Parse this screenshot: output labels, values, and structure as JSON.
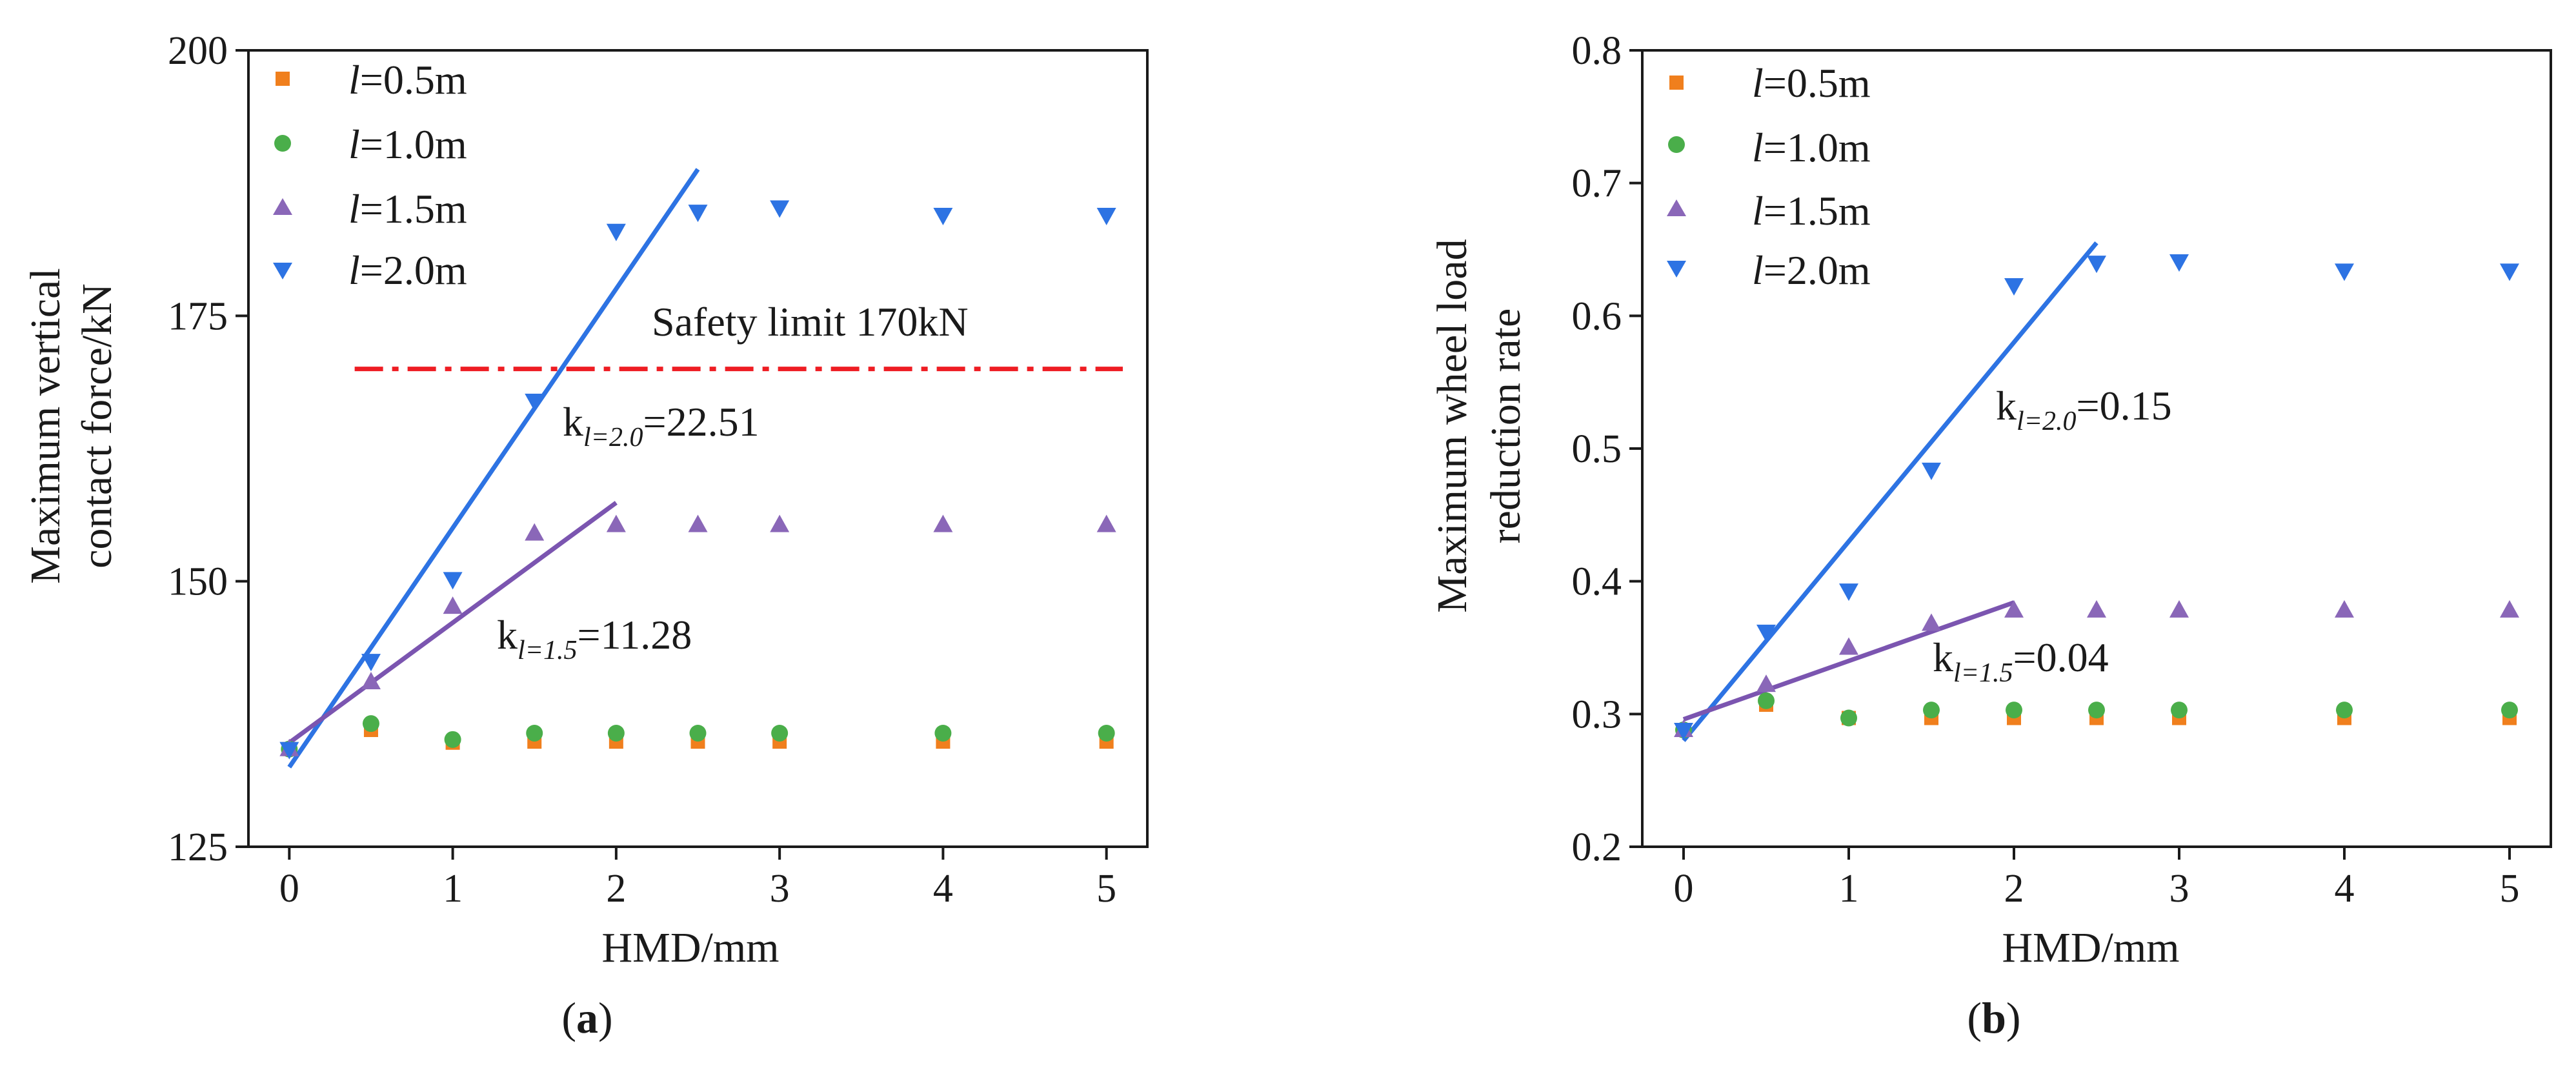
{
  "colors": {
    "l05": "#f07f1d",
    "l10": "#4aae4a",
    "l15": "#8a67b8",
    "l20": "#2d73e3",
    "fit15": "#7b55b0",
    "fit20": "#2d73e3",
    "limit": "#ee1d23",
    "axis": "#1a1a1a"
  },
  "chart_data": [
    {
      "type": "scatter",
      "panel_label": "a",
      "xlabel": "HMD/mm",
      "ylabel_lines": [
        "Maximum vertical",
        "contact force/kN"
      ],
      "xlim": [
        -0.25,
        5.25
      ],
      "ylim": [
        125,
        200
      ],
      "xticks": [
        0,
        1,
        2,
        3,
        4,
        5
      ],
      "yticks": [
        125,
        150,
        175,
        200
      ],
      "legend_position": "top-left",
      "series": [
        {
          "key": "l05",
          "legend_italic": "l",
          "legend_rest": "=0.5m",
          "marker": "square",
          "x": [
            0,
            0.5,
            1,
            1.5,
            2,
            2.5,
            3,
            4,
            5
          ],
          "y": [
            134.2,
            136.0,
            134.8,
            134.9,
            134.9,
            134.9,
            134.9,
            134.9,
            134.9
          ]
        },
        {
          "key": "l10",
          "legend_italic": "l",
          "legend_rest": "=1.0m",
          "marker": "circle",
          "x": [
            0,
            0.5,
            1,
            1.5,
            2,
            2.5,
            3,
            4,
            5
          ],
          "y": [
            134.2,
            136.6,
            135.1,
            135.7,
            135.7,
            135.7,
            135.7,
            135.7,
            135.7
          ]
        },
        {
          "key": "l15",
          "legend_italic": "l",
          "legend_rest": "=1.5m",
          "marker": "triangle-up",
          "x": [
            0,
            0.5,
            1,
            1.5,
            2,
            2.5,
            3,
            4,
            5
          ],
          "y": [
            134.2,
            140.5,
            147.6,
            154.5,
            155.3,
            155.3,
            155.3,
            155.3,
            155.3
          ]
        },
        {
          "key": "l20",
          "legend_italic": "l",
          "legend_rest": "=2.0m",
          "marker": "triangle-down",
          "x": [
            0,
            0.5,
            1,
            1.5,
            2,
            2.5,
            3,
            4,
            5
          ],
          "y": [
            134.2,
            142.5,
            150.2,
            167.0,
            183.0,
            184.8,
            185.2,
            184.5,
            184.5
          ]
        }
      ],
      "fits": [
        {
          "key": "fit20",
          "x": [
            0,
            2.5
          ],
          "y": [
            132.5,
            188.8
          ],
          "label_main": "k",
          "label_sub": "l=2.0",
          "label_value": "=22.51"
        },
        {
          "key": "fit15",
          "x": [
            0,
            2
          ],
          "y": [
            134.8,
            157.4
          ],
          "label_main": "k",
          "label_sub": "l=1.5",
          "label_value": "=11.28"
        }
      ],
      "reference_line": {
        "y": 170,
        "x_start": 0.4,
        "x_end": 5.1,
        "label": "Safety limit 170kN"
      }
    },
    {
      "type": "scatter",
      "panel_label": "b",
      "xlabel": "HMD/mm",
      "ylabel_lines": [
        "Maximum wheel load",
        "reduction rate"
      ],
      "xlim": [
        -0.25,
        5.25
      ],
      "ylim": [
        0.2,
        0.8
      ],
      "xticks": [
        0,
        1,
        2,
        3,
        4,
        5
      ],
      "yticks": [
        0.2,
        0.3,
        0.4,
        0.5,
        0.6,
        0.7,
        0.8
      ],
      "legend_position": "top-left",
      "series": [
        {
          "key": "l05",
          "legend_italic": "l",
          "legend_rest": "=0.5m",
          "marker": "square",
          "x": [
            0,
            0.5,
            1,
            1.5,
            2,
            2.5,
            3,
            4,
            5
          ],
          "y": [
            0.288,
            0.307,
            0.297,
            0.297,
            0.297,
            0.297,
            0.297,
            0.297,
            0.297
          ]
        },
        {
          "key": "l10",
          "legend_italic": "l",
          "legend_rest": "=1.0m",
          "marker": "circle",
          "x": [
            0,
            0.5,
            1,
            1.5,
            2,
            2.5,
            3,
            4,
            5
          ],
          "y": [
            0.288,
            0.31,
            0.297,
            0.303,
            0.303,
            0.303,
            0.303,
            0.303,
            0.303
          ]
        },
        {
          "key": "l15",
          "legend_italic": "l",
          "legend_rest": "=1.5m",
          "marker": "triangle-up",
          "x": [
            0,
            0.5,
            1,
            1.5,
            2,
            2.5,
            3,
            4,
            5
          ],
          "y": [
            0.288,
            0.322,
            0.35,
            0.368,
            0.378,
            0.378,
            0.378,
            0.378,
            0.378
          ]
        },
        {
          "key": "l20",
          "legend_italic": "l",
          "legend_rest": "=2.0m",
          "marker": "triangle-down",
          "x": [
            0,
            0.5,
            1,
            1.5,
            2,
            2.5,
            3,
            4,
            5
          ],
          "y": [
            0.288,
            0.362,
            0.393,
            0.484,
            0.623,
            0.64,
            0.641,
            0.634,
            0.634
          ]
        }
      ],
      "fits": [
        {
          "key": "fit20",
          "x": [
            0,
            2.5
          ],
          "y": [
            0.28,
            0.655
          ],
          "label_main": "k",
          "label_sub": "l=2.0",
          "label_value": "=0.15"
        },
        {
          "key": "fit15",
          "x": [
            0,
            2
          ],
          "y": [
            0.296,
            0.384
          ],
          "label_main": "k",
          "label_sub": "l=1.5",
          "label_value": "=0.04"
        }
      ],
      "reference_line": null
    }
  ]
}
